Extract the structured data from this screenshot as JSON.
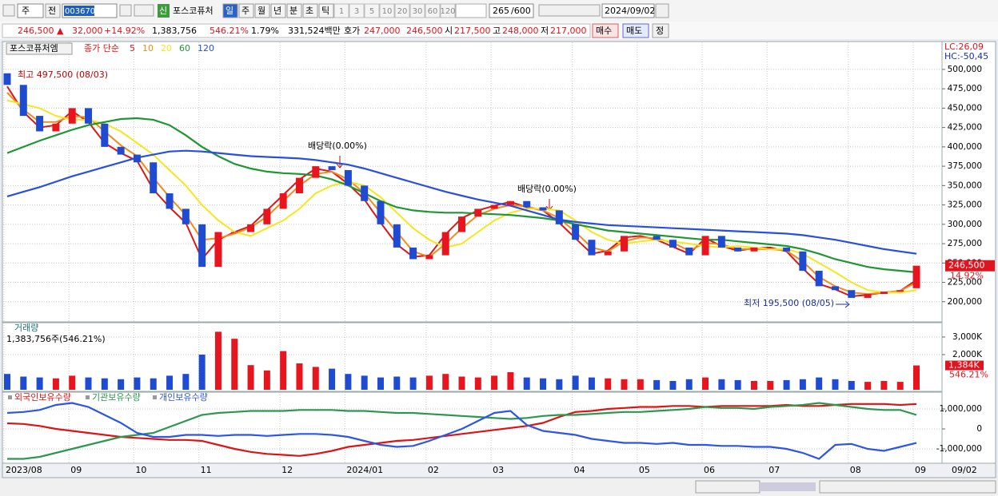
{
  "toolbar": {
    "market": "주",
    "prev": "전",
    "code": "003670",
    "new": "신",
    "name": "포스코퓨처",
    "periods": [
      "일",
      "주",
      "월",
      "년",
      "분",
      "초",
      "틱"
    ],
    "intervals": [
      "1",
      "3",
      "5",
      "10",
      "20",
      "30",
      "60",
      "120"
    ],
    "count": "265",
    "max": "/600",
    "date": "2024/09/02"
  },
  "quote": {
    "price": "246,500 ▲",
    "change": "32,000",
    "rate": "+14.92%",
    "volume": "1,383,756",
    "volume_rate": "546.21%",
    "turnover": "1.79%",
    "amount": "331,524백만",
    "bid_label": "호가",
    "ask": "247,000",
    "bid": "246,500",
    "open_label": "시",
    "open": "217,500",
    "high_label": "고",
    "high": "248,000",
    "low_label": "저",
    "low": "217,000",
    "buy": "매수",
    "sell": "매도",
    "correct": "정"
  },
  "chart_data": [
    {
      "type": "candlestick",
      "title": "포스코퓨처엠",
      "ma_label": "종가 단순",
      "categories": [
        "2023/08",
        null,
        null,
        null,
        "09",
        null,
        null,
        null,
        "10",
        null,
        null,
        null,
        "11",
        null,
        null,
        null,
        null,
        "12",
        null,
        null,
        null,
        "2024/01",
        null,
        null,
        null,
        null,
        "02",
        null,
        null,
        null,
        "03",
        null,
        null,
        null,
        null,
        "04",
        null,
        null,
        null,
        "05",
        null,
        null,
        null,
        "06",
        null,
        null,
        null,
        "07",
        null,
        null,
        null,
        null,
        "08",
        null,
        null,
        null,
        "09"
      ],
      "open": [
        495000,
        480000,
        440000,
        420000,
        430000,
        450000,
        430000,
        400000,
        390000,
        380000,
        340000,
        320000,
        300000,
        245000,
        290000,
        290000,
        300000,
        320000,
        340000,
        360000,
        375000,
        370000,
        350000,
        330000,
        300000,
        270000,
        255000,
        260000,
        290000,
        310000,
        320000,
        325000,
        330000,
        322000,
        318000,
        300000,
        280000,
        260000,
        265000,
        285000,
        285000,
        280000,
        270000,
        260000,
        285000,
        270000,
        265000,
        270000,
        270000,
        265000,
        240000,
        220000,
        215000,
        205000,
        210000,
        213000,
        217500
      ],
      "close": [
        480000,
        440000,
        420000,
        430000,
        450000,
        430000,
        400000,
        390000,
        380000,
        340000,
        320000,
        300000,
        245000,
        290000,
        290000,
        300000,
        320000,
        340000,
        360000,
        375000,
        370000,
        350000,
        330000,
        300000,
        270000,
        255000,
        260000,
        290000,
        310000,
        320000,
        325000,
        330000,
        322000,
        318000,
        300000,
        280000,
        260000,
        265000,
        285000,
        285000,
        280000,
        270000,
        260000,
        285000,
        270000,
        265000,
        270000,
        270000,
        265000,
        240000,
        220000,
        215000,
        205000,
        210000,
        213000,
        215000,
        246500
      ],
      "up_color": "#e8141e",
      "down_color": "#1e4bd2",
      "series": [
        {
          "name": "5",
          "color": "#d81818",
          "values": [
            478000,
            445000,
            425000,
            428000,
            446000,
            432000,
            405000,
            392000,
            382000,
            345000,
            322000,
            302000,
            255000,
            280000,
            290000,
            298000,
            318000,
            338000,
            358000,
            372000,
            368000,
            352000,
            332000,
            302000,
            274000,
            258000,
            260000,
            287000,
            308000,
            318000,
            324000,
            329000,
            322000,
            318000,
            302000,
            282000,
            262000,
            266000,
            283000,
            285000,
            280000,
            271000,
            262000,
            282000,
            272000,
            266000,
            269000,
            270000,
            265000,
            243000,
            223000,
            216000,
            207000,
            209000,
            212000,
            214000,
            228000
          ]
        },
        {
          "name": "10",
          "color": "#f08c1e",
          "values": [
            470000,
            448000,
            432000,
            432000,
            440000,
            438000,
            420000,
            402000,
            388000,
            360000,
            335000,
            312000,
            280000,
            282000,
            288000,
            296000,
            310000,
            330000,
            350000,
            365000,
            368000,
            358000,
            340000,
            315000,
            290000,
            265000,
            258000,
            275000,
            295000,
            312000,
            320000,
            325000,
            323000,
            318000,
            308000,
            290000,
            270000,
            265000,
            278000,
            283000,
            282000,
            276000,
            266000,
            276000,
            274000,
            268000,
            268000,
            268000,
            266000,
            252000,
            232000,
            220000,
            212000,
            210000,
            212000,
            214000,
            225000
          ]
        },
        {
          "name": "20",
          "color": "#f5e61e",
          "values": [
            460000,
            455000,
            450000,
            440000,
            435000,
            435000,
            430000,
            420000,
            405000,
            390000,
            370000,
            350000,
            325000,
            305000,
            290000,
            285000,
            295000,
            305000,
            320000,
            340000,
            350000,
            355000,
            350000,
            335000,
            315000,
            295000,
            280000,
            270000,
            275000,
            290000,
            305000,
            315000,
            320000,
            320000,
            318000,
            305000,
            290000,
            280000,
            275000,
            278000,
            280000,
            278000,
            275000,
            272000,
            270000,
            272000,
            270000,
            268000,
            268000,
            262000,
            250000,
            238000,
            225000,
            215000,
            212000,
            212000,
            215000
          ]
        },
        {
          "name": "60",
          "color": "#1e9632",
          "values": [
            392000,
            400000,
            408000,
            415000,
            422000,
            428000,
            432000,
            436000,
            437000,
            435000,
            428000,
            415000,
            400000,
            388000,
            378000,
            372000,
            368000,
            366000,
            365000,
            363000,
            358000,
            350000,
            340000,
            330000,
            322000,
            318000,
            316000,
            315000,
            315000,
            314000,
            313000,
            312000,
            310000,
            308000,
            305000,
            300000,
            296000,
            292000,
            290000,
            288000,
            286000,
            284000,
            282000,
            280000,
            280000,
            278000,
            276000,
            274000,
            272000,
            268000,
            262000,
            255000,
            250000,
            245000,
            242000,
            240000,
            238000
          ]
        },
        {
          "name": "120",
          "color": "#2850dc",
          "values": [
            336000,
            342000,
            348000,
            355000,
            362000,
            368000,
            374000,
            380000,
            386000,
            390000,
            394000,
            395000,
            394000,
            392000,
            390000,
            388000,
            387000,
            386000,
            385000,
            383000,
            380000,
            377000,
            372000,
            366000,
            360000,
            354000,
            348000,
            342000,
            337000,
            332000,
            328000,
            324000,
            318000,
            312000,
            306000,
            303000,
            301000,
            299000,
            298000,
            297000,
            296000,
            295000,
            294000,
            293000,
            292000,
            291000,
            290000,
            289000,
            288000,
            286000,
            283000,
            280000,
            276000,
            272000,
            268000,
            265000,
            262000
          ]
        }
      ],
      "ylim": [
        174000,
        536000
      ],
      "yticks": [
        {
          "value": 200000,
          "label": "200,000"
        },
        {
          "value": 225000,
          "label": "225,000"
        },
        {
          "value": 250000,
          "label": "250,000"
        },
        {
          "value": 275000,
          "label": "275,000"
        },
        {
          "value": 300000,
          "label": "300,000"
        },
        {
          "value": 325000,
          "label": "325,000"
        },
        {
          "value": 350000,
          "label": "350,000"
        },
        {
          "value": 375000,
          "label": "375,000"
        },
        {
          "value": 400000,
          "label": "400,000"
        },
        {
          "value": 425000,
          "label": "425,000"
        },
        {
          "value": 450000,
          "label": "450,000"
        },
        {
          "value": 475000,
          "label": "475,000"
        },
        {
          "value": 500000,
          "label": "500,000"
        }
      ],
      "grid": true,
      "annotations": [
        "최고 497,500 (08/03)",
        "최저 195,500 (08/05)",
        "배당락(0.00%)",
        "배당락(0.00%)"
      ],
      "indicators": [
        "LC:26,09",
        "HC:-50,45"
      ],
      "last_label": "246,500",
      "last_rate": "14.92%"
    },
    {
      "type": "bar",
      "title": "거래량",
      "subtitle": "1,383,756주(546.21%)",
      "values": [
        900000,
        750000,
        700000,
        650000,
        800000,
        700000,
        650000,
        600000,
        700000,
        650000,
        800000,
        900000,
        2000000,
        3300000,
        2900000,
        1400000,
        1100000,
        2200000,
        1500000,
        1300000,
        1200000,
        900000,
        800000,
        700000,
        750000,
        700000,
        800000,
        900000,
        750000,
        700000,
        800000,
        1000000,
        700000,
        650000,
        600000,
        800000,
        700000,
        650000,
        600000,
        600000,
        550000,
        500000,
        600000,
        700000,
        600000,
        550000,
        500000,
        500000,
        550000,
        600000,
        700000,
        600000,
        500000,
        450000,
        500000,
        450000,
        1383756
      ],
      "ylim": [
        0,
        3770000
      ],
      "yticks": [
        {
          "value": 2000000,
          "label": "2,000K"
        },
        {
          "value": 3000000,
          "label": "3,000K"
        }
      ],
      "grid": true,
      "last_label": "1,384K",
      "last_rate": "546.21%"
    },
    {
      "type": "line",
      "series": [
        {
          "name": "외국인보유수량",
          "color": "#dc1414",
          "values": [
            280000,
            250000,
            150000,
            0,
            -100000,
            -200000,
            -300000,
            -400000,
            -450000,
            -500000,
            -550000,
            -550000,
            -600000,
            -800000,
            -1000000,
            -1150000,
            -1250000,
            -1300000,
            -1350000,
            -1250000,
            -1100000,
            -900000,
            -800000,
            -700000,
            -600000,
            -550000,
            -450000,
            -350000,
            -250000,
            -150000,
            -50000,
            50000,
            150000,
            300000,
            600000,
            850000,
            900000,
            1000000,
            1050000,
            1100000,
            1100000,
            1150000,
            1150000,
            1100000,
            1150000,
            1150000,
            1150000,
            1150000,
            1200000,
            1150000,
            1150000,
            1200000,
            1250000,
            1250000,
            1250000,
            1200000,
            1250000
          ]
        },
        {
          "name": "기관보유수량",
          "color": "#2d9650",
          "values": [
            -1500000,
            -1500000,
            -1400000,
            -1200000,
            -1000000,
            -800000,
            -600000,
            -400000,
            -300000,
            -200000,
            100000,
            400000,
            700000,
            800000,
            850000,
            900000,
            900000,
            900000,
            950000,
            950000,
            950000,
            900000,
            900000,
            850000,
            800000,
            800000,
            750000,
            700000,
            650000,
            600000,
            550000,
            500000,
            550000,
            650000,
            700000,
            700000,
            750000,
            800000,
            850000,
            850000,
            900000,
            950000,
            1000000,
            1100000,
            1050000,
            1050000,
            1000000,
            1100000,
            1150000,
            1200000,
            1300000,
            1200000,
            1100000,
            1000000,
            950000,
            950000,
            700000
          ]
        },
        {
          "name": "개인보유수량",
          "color": "#2d55e6",
          "values": [
            800000,
            850000,
            950000,
            1200000,
            1300000,
            1100000,
            700000,
            300000,
            -200000,
            -400000,
            -400000,
            -300000,
            -300000,
            -350000,
            -300000,
            -300000,
            -350000,
            -300000,
            -250000,
            -250000,
            -300000,
            -400000,
            -600000,
            -800000,
            -900000,
            -850000,
            -600000,
            -300000,
            0,
            400000,
            800000,
            900000,
            200000,
            -100000,
            -200000,
            -300000,
            -500000,
            -600000,
            -700000,
            -700000,
            -750000,
            -700000,
            -800000,
            -800000,
            -850000,
            -850000,
            -900000,
            -900000,
            -1000000,
            -1200000,
            -1500000,
            -800000,
            -750000,
            -1000000,
            -1100000,
            -900000,
            -700000
          ]
        }
      ],
      "ylim": [
        -1640000,
        1800000
      ],
      "yticks": [
        {
          "value": -1000000,
          "label": "-1,000,000"
        },
        0,
        {
          "value": 1000000,
          "label": "1,000,000"
        }
      ],
      "grid": true
    }
  ],
  "footer": {
    "date": "09/02"
  }
}
